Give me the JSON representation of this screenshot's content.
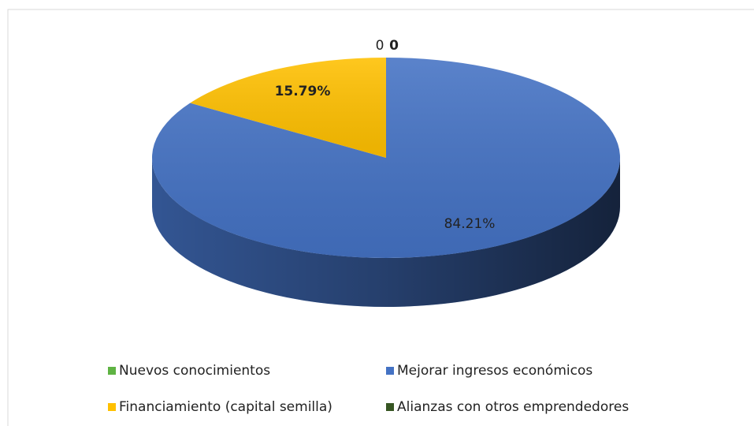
{
  "chart_data": {
    "type": "pie",
    "categories": [
      "Nuevos conocimientos",
      "Mejorar ingresos económicos",
      "Financiamiento (capital semilla)",
      "Alianzas con otros emprendedores"
    ],
    "values": [
      0,
      84.21,
      15.79,
      0
    ],
    "value_labels": [
      "0",
      "84.21%",
      "15.79%",
      "0"
    ],
    "colors": [
      "#5fb343",
      "#4472c4",
      "#ffc000",
      "#375623"
    ],
    "legend": "bottom"
  }
}
